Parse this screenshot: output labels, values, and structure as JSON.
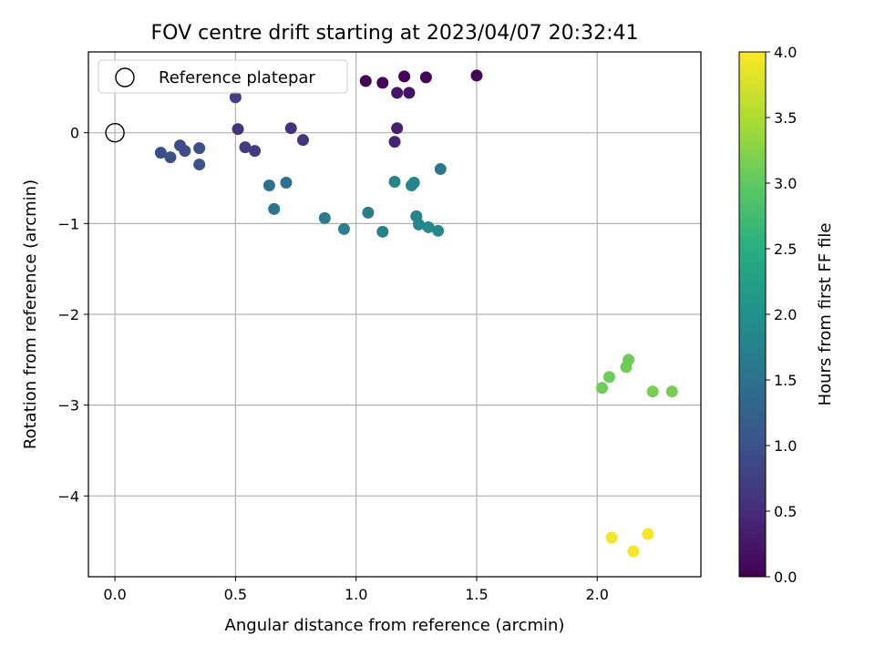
{
  "chart_data": {
    "type": "scatter",
    "title": "FOV centre drift starting at 2023/04/07 20:32:41",
    "xlabel": "Angular distance from reference (arcmin)",
    "ylabel": "Rotation from reference (arcmin)",
    "xlim": [
      -0.11,
      2.43
    ],
    "ylim": [
      -4.89,
      0.89
    ],
    "xticks": [
      0.0,
      0.5,
      1.0,
      1.5,
      2.0
    ],
    "xtick_labels": [
      "0.0",
      "0.5",
      "1.0",
      "1.5",
      "2.0"
    ],
    "yticks": [
      0,
      -1,
      -2,
      -3,
      -4
    ],
    "ytick_labels": [
      "0",
      "−1",
      "−2",
      "−3",
      "−4"
    ],
    "grid": true,
    "legend": {
      "position": "upper left",
      "entries": [
        "Reference platepar"
      ]
    },
    "reference_point": {
      "x": 0.0,
      "y": 0.0,
      "marker": "open-circle",
      "color": "#000000"
    },
    "colorbar": {
      "label": "Hours from first FF file",
      "range": [
        0.0,
        4.0
      ],
      "ticks": [
        0.0,
        0.5,
        1.0,
        1.5,
        2.0,
        2.5,
        3.0,
        3.5,
        4.0
      ],
      "tick_labels": [
        "0.0",
        "0.5",
        "1.0",
        "1.5",
        "2.0",
        "2.5",
        "3.0",
        "3.5",
        "4.0"
      ],
      "colormap": "viridis"
    },
    "points": [
      {
        "x": 1.04,
        "y": 0.57,
        "c": 0.03
      },
      {
        "x": 1.11,
        "y": 0.55,
        "c": 0.07
      },
      {
        "x": 1.2,
        "y": 0.62,
        "c": 0.02
      },
      {
        "x": 1.29,
        "y": 0.61,
        "c": 0.04
      },
      {
        "x": 1.5,
        "y": 0.63,
        "c": 0.05
      },
      {
        "x": 1.17,
        "y": 0.44,
        "c": 0.25
      },
      {
        "x": 1.22,
        "y": 0.44,
        "c": 0.2
      },
      {
        "x": 1.17,
        "y": 0.05,
        "c": 0.35
      },
      {
        "x": 1.16,
        "y": -0.1,
        "c": 0.4
      },
      {
        "x": 0.5,
        "y": 0.39,
        "c": 0.75
      },
      {
        "x": 0.51,
        "y": 0.04,
        "c": 0.55
      },
      {
        "x": 0.73,
        "y": 0.05,
        "c": 0.55
      },
      {
        "x": 0.78,
        "y": -0.08,
        "c": 0.6
      },
      {
        "x": 0.54,
        "y": -0.16,
        "c": 0.7
      },
      {
        "x": 0.58,
        "y": -0.2,
        "c": 0.68
      },
      {
        "x": 0.19,
        "y": -0.22,
        "c": 0.95
      },
      {
        "x": 0.23,
        "y": -0.27,
        "c": 0.98
      },
      {
        "x": 0.27,
        "y": -0.14,
        "c": 0.9
      },
      {
        "x": 0.29,
        "y": -0.2,
        "c": 0.93
      },
      {
        "x": 0.35,
        "y": -0.17,
        "c": 0.97
      },
      {
        "x": 0.35,
        "y": -0.35,
        "c": 1.0
      },
      {
        "x": 0.64,
        "y": -0.58,
        "c": 1.5
      },
      {
        "x": 0.71,
        "y": -0.55,
        "c": 1.5
      },
      {
        "x": 0.66,
        "y": -0.84,
        "c": 1.55
      },
      {
        "x": 0.87,
        "y": -0.94,
        "c": 1.7
      },
      {
        "x": 0.95,
        "y": -1.06,
        "c": 1.75
      },
      {
        "x": 1.05,
        "y": -0.88,
        "c": 1.7
      },
      {
        "x": 1.11,
        "y": -1.09,
        "c": 1.75
      },
      {
        "x": 1.16,
        "y": -0.54,
        "c": 1.8
      },
      {
        "x": 1.23,
        "y": -0.58,
        "c": 1.8
      },
      {
        "x": 1.24,
        "y": -0.55,
        "c": 1.8
      },
      {
        "x": 1.25,
        "y": -0.92,
        "c": 1.8
      },
      {
        "x": 1.26,
        "y": -1.01,
        "c": 1.82
      },
      {
        "x": 1.3,
        "y": -1.04,
        "c": 1.85
      },
      {
        "x": 1.34,
        "y": -1.08,
        "c": 1.85
      },
      {
        "x": 1.35,
        "y": -0.4,
        "c": 1.6
      },
      {
        "x": 2.02,
        "y": -2.81,
        "c": 3.1
      },
      {
        "x": 2.05,
        "y": -2.69,
        "c": 3.1
      },
      {
        "x": 2.12,
        "y": -2.58,
        "c": 3.1
      },
      {
        "x": 2.13,
        "y": -2.5,
        "c": 3.1
      },
      {
        "x": 2.23,
        "y": -2.85,
        "c": 3.15
      },
      {
        "x": 2.31,
        "y": -2.85,
        "c": 3.15
      },
      {
        "x": 2.06,
        "y": -4.46,
        "c": 3.95
      },
      {
        "x": 2.15,
        "y": -4.61,
        "c": 3.95
      },
      {
        "x": 2.21,
        "y": -4.42,
        "c": 3.95
      }
    ]
  }
}
